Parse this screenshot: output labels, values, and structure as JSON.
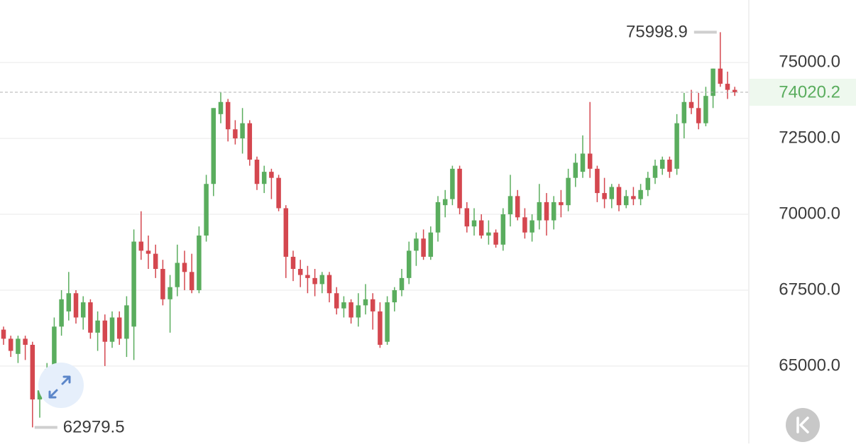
{
  "chart_data": {
    "type": "candlestick",
    "up_color": "#5aad5e",
    "down_color": "#d4474f",
    "ylim": [
      62450,
      77060
    ],
    "yticks": [
      {
        "value": 75000,
        "label": "75000.0"
      },
      {
        "value": 72500,
        "label": "72500.0"
      },
      {
        "value": 70000,
        "label": "70000.0"
      },
      {
        "value": 67500,
        "label": "67500.0"
      },
      {
        "value": 65000,
        "label": "65000.0"
      }
    ],
    "grid": true,
    "open": [
      66200,
      65900,
      65400,
      65900,
      65700,
      63900,
      64100,
      64900,
      66300,
      66800,
      67400,
      66600,
      67100,
      66100,
      66500,
      65800,
      66600,
      65900,
      66300,
      69100,
      68800,
      68700,
      68200,
      67200,
      67600,
      68400,
      68100,
      67500,
      69300,
      71000,
      73300,
      73700,
      72800,
      72500,
      73000,
      71800,
      71000,
      71400,
      71200,
      70200,
      68600,
      68200,
      68000,
      67900,
      67700,
      68000,
      67400,
      66900,
      67100,
      66600,
      67000,
      67200,
      66800,
      65800,
      67100,
      67500,
      67900,
      68800,
      69200,
      68600,
      69400,
      70300,
      70500,
      71500,
      70200,
      69600,
      69800,
      69300,
      69400,
      69000,
      70000,
      70600,
      69900,
      69400,
      69800,
      70400,
      69800,
      70400,
      70300,
      71200,
      71400,
      72000,
      71500,
      70700,
      70500,
      70900,
      70300,
      70600,
      70500,
      70800,
      71200,
      71500,
      71800,
      71500,
      73000,
      73700,
      73500,
      73000,
      73900,
      74800,
      74300,
      74100
    ],
    "high": [
      66300,
      66000,
      66000,
      66000,
      65800,
      64300,
      65100,
      66600,
      67500,
      68100,
      67500,
      67300,
      67200,
      66800,
      66700,
      66800,
      66800,
      67300,
      69500,
      70100,
      69300,
      69000,
      68500,
      68000,
      69000,
      68800,
      68700,
      69600,
      71300,
      73500,
      74030,
      73800,
      73100,
      73500,
      73100,
      71900,
      71600,
      71500,
      71300,
      70300,
      68800,
      68500,
      68300,
      68200,
      68100,
      68100,
      67600,
      67300,
      67200,
      67400,
      67700,
      67400,
      67100,
      67300,
      67600,
      68200,
      69100,
      69400,
      69500,
      69600,
      70600,
      70800,
      71600,
      71600,
      70400,
      70200,
      70000,
      69800,
      69500,
      70200,
      71300,
      70800,
      70200,
      70000,
      71000,
      70700,
      70600,
      70800,
      71500,
      72000,
      72600,
      73700,
      71600,
      71200,
      71000,
      71000,
      70800,
      70900,
      71000,
      71400,
      71800,
      71900,
      71900,
      73300,
      74000,
      74100,
      74000,
      74200,
      74800,
      75998.9,
      74700,
      74200
    ],
    "low": [
      65700,
      65300,
      65100,
      65200,
      62979.5,
      63300,
      63800,
      64600,
      66000,
      66500,
      66400,
      66200,
      65900,
      65500,
      65000,
      65600,
      65700,
      65300,
      65200,
      68500,
      68200,
      67900,
      67000,
      66100,
      67300,
      67500,
      67400,
      67400,
      69100,
      70600,
      73000,
      72400,
      72300,
      72000,
      71600,
      70800,
      70700,
      70500,
      70100,
      67900,
      67800,
      67600,
      67400,
      67300,
      67400,
      67100,
      66700,
      66600,
      66400,
      66300,
      66700,
      66200,
      65600,
      65700,
      66800,
      67300,
      67700,
      68300,
      68500,
      68500,
      69100,
      69900,
      70300,
      70000,
      69400,
      69300,
      69200,
      69000,
      68900,
      68800,
      69600,
      69800,
      69200,
      69100,
      69500,
      69300,
      69500,
      69900,
      70100,
      70900,
      71200,
      71200,
      70400,
      70200,
      70200,
      70100,
      70200,
      70300,
      70300,
      70600,
      71000,
      71300,
      71200,
      71300,
      72500,
      73300,
      72800,
      72900,
      73500,
      74200,
      73800,
      73900
    ],
    "close": [
      65900,
      65500,
      65900,
      65700,
      63900,
      64200,
      64900,
      66300,
      67200,
      67400,
      66600,
      67100,
      66100,
      66500,
      65800,
      66600,
      65900,
      67000,
      69100,
      68800,
      68700,
      68200,
      67200,
      67600,
      68400,
      68100,
      67500,
      69300,
      71000,
      73500,
      73700,
      72800,
      72500,
      73000,
      71800,
      71000,
      71400,
      71200,
      70200,
      68600,
      68200,
      68000,
      67900,
      67700,
      68000,
      67400,
      66900,
      67100,
      66600,
      67000,
      67200,
      66800,
      65700,
      67100,
      67500,
      67900,
      68800,
      69200,
      68600,
      69400,
      70400,
      70500,
      71500,
      70200,
      69600,
      69800,
      69300,
      69400,
      69000,
      70000,
      70600,
      69900,
      69400,
      69800,
      70400,
      69800,
      70400,
      70300,
      71200,
      71700,
      72000,
      71500,
      70700,
      70500,
      70900,
      70300,
      70600,
      70500,
      70800,
      71200,
      71600,
      71800,
      71400,
      73000,
      73700,
      73500,
      73000,
      73900,
      74800,
      74300,
      74100,
      74020.2
    ]
  }
}
